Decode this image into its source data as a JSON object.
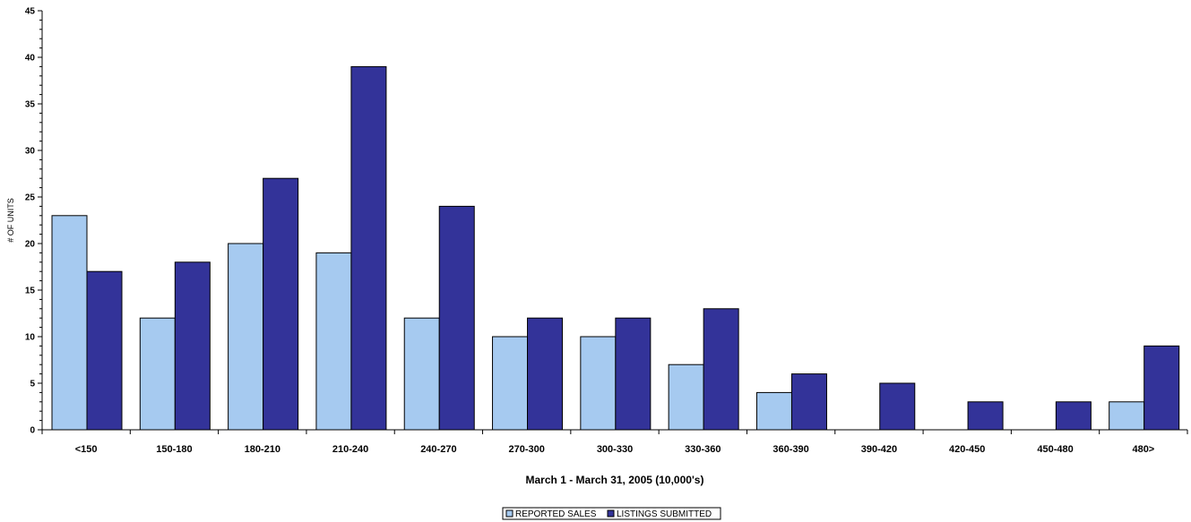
{
  "chart_data": {
    "type": "bar",
    "title": "",
    "xlabel": "March 1 - March 31, 2005 (10,000's)",
    "ylabel": "# OF UNITS",
    "ylim": [
      0,
      45
    ],
    "yticks": [
      0,
      5,
      10,
      15,
      20,
      25,
      30,
      35,
      40,
      45
    ],
    "categories": [
      "<150",
      "150-180",
      "180-210",
      "210-240",
      "240-270",
      "270-300",
      "300-330",
      "330-360",
      "360-390",
      "390-420",
      "420-450",
      "450-480",
      "480>"
    ],
    "series": [
      {
        "name": "REPORTED SALES",
        "color": "#a6caf0",
        "values": [
          23,
          12,
          20,
          19,
          12,
          10,
          10,
          7,
          4,
          0,
          0,
          0,
          3
        ]
      },
      {
        "name": "LISTINGS SUBMITTED",
        "color": "#333399",
        "values": [
          17,
          18,
          27,
          39,
          24,
          12,
          12,
          13,
          6,
          5,
          3,
          3,
          9
        ]
      }
    ],
    "grid": false,
    "legend": "bottom-center"
  }
}
